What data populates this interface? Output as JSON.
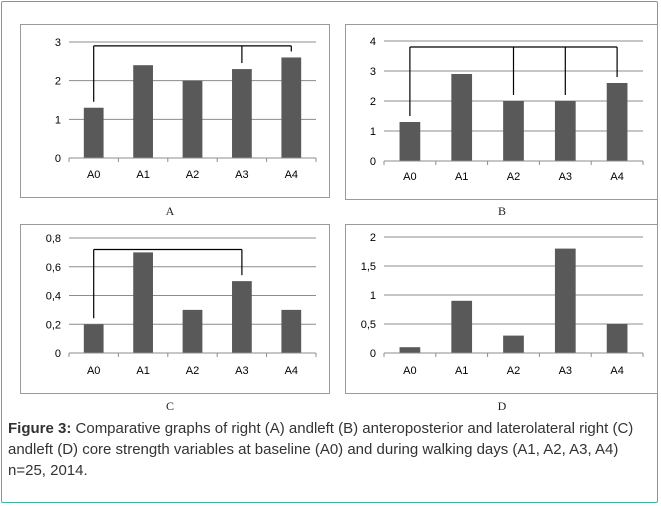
{
  "colors": {
    "frame": "#3bb8a8",
    "bar": "#595959",
    "grid": "#8c8c8c",
    "bracket": "#000000"
  },
  "chart_data": [
    {
      "type": "bar",
      "panel_label": "A",
      "categories": [
        "A0",
        "A1",
        "A2",
        "A3",
        "A4"
      ],
      "values": [
        1.3,
        2.4,
        2.0,
        2.3,
        2.6
      ],
      "ylim": [
        0,
        3
      ],
      "yticks": [
        0,
        1,
        2,
        3
      ],
      "ytick_labels": [
        "0",
        "1",
        "2",
        "3"
      ],
      "grid": true,
      "brackets": [
        {
          "from": "A0",
          "to": "A4",
          "drops": [
            "A0",
            "A3",
            "A4"
          ],
          "level": 2.9
        }
      ]
    },
    {
      "type": "bar",
      "panel_label": "B",
      "categories": [
        "A0",
        "A1",
        "A2",
        "A3",
        "A4"
      ],
      "values": [
        1.3,
        2.9,
        2.0,
        2.0,
        2.6
      ],
      "ylim": [
        0,
        4
      ],
      "yticks": [
        0,
        1,
        2,
        3,
        4
      ],
      "ytick_labels": [
        "0",
        "1",
        "2",
        "3",
        "4"
      ],
      "grid": true,
      "brackets": [
        {
          "from": "A0",
          "to": "A4",
          "drops": [
            "A0",
            "A2",
            "A3",
            "A4"
          ],
          "level": 3.8
        }
      ]
    },
    {
      "type": "bar",
      "panel_label": "C",
      "categories": [
        "A0",
        "A1",
        "A2",
        "A3",
        "A4"
      ],
      "values": [
        0.2,
        0.7,
        0.3,
        0.5,
        0.3
      ],
      "ylim": [
        0,
        0.8
      ],
      "yticks": [
        0,
        0.2,
        0.4,
        0.6,
        0.8
      ],
      "ytick_labels": [
        "0",
        "0,2",
        "0,4",
        "0,6",
        "0,8"
      ],
      "grid": true,
      "brackets": [
        {
          "from": "A0",
          "to": "A3",
          "drops": [
            "A0",
            "A3"
          ],
          "level": 0.72
        }
      ]
    },
    {
      "type": "bar",
      "panel_label": "D",
      "categories": [
        "A0",
        "A1",
        "A2",
        "A3",
        "A4"
      ],
      "values": [
        0.1,
        0.9,
        0.3,
        1.8,
        0.5
      ],
      "ylim": [
        0,
        2
      ],
      "yticks": [
        0,
        0.5,
        1,
        1.5,
        2
      ],
      "ytick_labels": [
        "0",
        "0,5",
        "1",
        "1,5",
        "2"
      ],
      "grid": true,
      "brackets": []
    }
  ],
  "caption": {
    "label": "Figure 3:",
    "text": "Comparative graphs of right (A) andleft (B) anteroposterior and laterolateral right (C) andleft (D) core strength variables at baseline (A0) and during walking days (A1, A2, A3, A4) n=25, 2014."
  }
}
